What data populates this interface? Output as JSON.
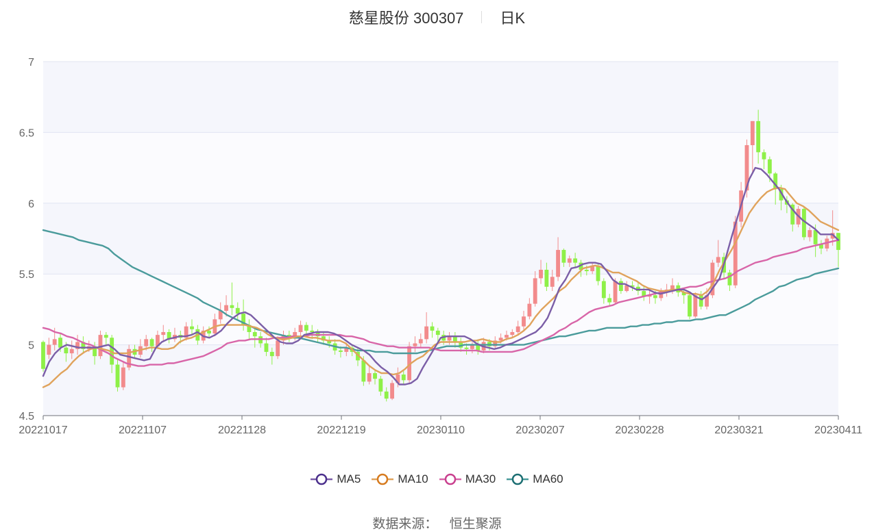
{
  "title": {
    "main": "慈星股份 300307",
    "sub": "日K"
  },
  "source": {
    "label": "数据来源：",
    "value": "恒生聚源"
  },
  "colors": {
    "up": "#f28b8c",
    "down": "#8ef048",
    "MA5": "#7b5ea7",
    "MA10": "#e0a35c",
    "MA30": "#d865a8",
    "MA60": "#4a9b9b",
    "legend_ring_MA5": "#4b2f8c",
    "legend_ring_MA10": "#d67a1e",
    "legend_ring_MA30": "#c93f8e",
    "legend_ring_MA60": "#1b6e72"
  },
  "chart_data": {
    "type": "candlestick",
    "ylim": [
      4.5,
      7
    ],
    "yticks": [
      "4.5",
      "5",
      "5.5",
      "6",
      "6.5",
      "7"
    ],
    "xticks": [
      "20221017",
      "20221107",
      "20221128",
      "20221219",
      "20230110",
      "20230207",
      "20230228",
      "20230321",
      "20230411"
    ],
    "legend": [
      "MA5",
      "MA10",
      "MA30",
      "MA60"
    ],
    "legend_position": "bottom",
    "candles": [
      [
        5.02,
        4.83,
        5.03,
        4.81
      ],
      [
        4.93,
        5.0,
        5.05,
        4.9
      ],
      [
        5.0,
        5.04,
        5.12,
        4.96
      ],
      [
        5.05,
        4.98,
        5.08,
        4.95
      ],
      [
        4.98,
        4.94,
        5.02,
        4.88
      ],
      [
        4.94,
        4.97,
        5.03,
        4.9
      ],
      [
        4.97,
        5.02,
        5.07,
        4.93
      ],
      [
        5.02,
        4.97,
        5.06,
        4.94
      ],
      [
        4.97,
        4.99,
        5.03,
        4.95
      ],
      [
        4.99,
        4.92,
        5.02,
        4.86
      ],
      [
        4.92,
        5.07,
        5.1,
        4.9
      ],
      [
        5.07,
        5.05,
        5.09,
        5.0
      ],
      [
        5.05,
        4.86,
        5.07,
        4.8
      ],
      [
        4.86,
        4.7,
        4.9,
        4.67
      ],
      [
        4.7,
        4.84,
        4.88,
        4.68
      ],
      [
        4.84,
        4.97,
        5.0,
        4.82
      ],
      [
        4.97,
        4.93,
        5.0,
        4.9
      ],
      [
        4.93,
        4.99,
        5.04,
        4.91
      ],
      [
        4.99,
        5.04,
        5.07,
        4.96
      ],
      [
        5.04,
        4.99,
        5.05,
        4.95
      ],
      [
        4.99,
        5.07,
        5.1,
        4.97
      ],
      [
        5.07,
        5.09,
        5.14,
        5.03
      ],
      [
        5.09,
        5.04,
        5.11,
        5.01
      ],
      [
        5.04,
        5.07,
        5.12,
        5.02
      ],
      [
        5.07,
        5.05,
        5.1,
        5.01
      ],
      [
        5.05,
        5.13,
        5.16,
        5.03
      ],
      [
        5.13,
        5.11,
        5.18,
        5.07
      ],
      [
        5.11,
        5.03,
        5.14,
        5.0
      ],
      [
        5.03,
        5.1,
        5.13,
        5.01
      ],
      [
        5.1,
        5.08,
        5.13,
        5.05
      ],
      [
        5.08,
        5.18,
        5.22,
        5.06
      ],
      [
        5.18,
        5.24,
        5.3,
        5.15
      ],
      [
        5.24,
        5.28,
        5.35,
        5.2
      ],
      [
        5.28,
        5.26,
        5.44,
        5.21
      ],
      [
        5.26,
        5.22,
        5.3,
        5.17
      ],
      [
        5.22,
        5.14,
        5.32,
        5.1
      ],
      [
        5.14,
        5.09,
        5.18,
        5.04
      ],
      [
        5.09,
        5.06,
        5.13,
        4.98
      ],
      [
        5.06,
        5.01,
        5.09,
        4.98
      ],
      [
        5.01,
        4.95,
        5.05,
        4.92
      ],
      [
        4.95,
        4.92,
        4.98,
        4.86
      ],
      [
        4.92,
        5.03,
        5.06,
        4.9
      ],
      [
        5.03,
        5.07,
        5.1,
        5.0
      ],
      [
        5.07,
        5.05,
        5.1,
        5.02
      ],
      [
        5.05,
        5.09,
        5.12,
        5.03
      ],
      [
        5.09,
        5.14,
        5.17,
        5.06
      ],
      [
        5.14,
        5.1,
        5.16,
        5.07
      ],
      [
        5.1,
        5.09,
        5.14,
        5.04
      ],
      [
        5.09,
        5.06,
        5.11,
        5.02
      ],
      [
        5.06,
        5.03,
        5.09,
        5.0
      ],
      [
        5.03,
        5.01,
        5.06,
        4.98
      ],
      [
        5.01,
        4.96,
        5.04,
        4.93
      ],
      [
        4.96,
        4.95,
        4.99,
        4.91
      ],
      [
        4.95,
        4.98,
        5.01,
        4.92
      ],
      [
        4.98,
        4.95,
        5.0,
        4.92
      ],
      [
        4.95,
        4.89,
        4.98,
        4.85
      ],
      [
        4.89,
        4.74,
        4.92,
        4.71
      ],
      [
        4.74,
        4.8,
        4.85,
        4.72
      ],
      [
        4.8,
        4.76,
        4.82,
        4.72
      ],
      [
        4.76,
        4.67,
        4.78,
        4.64
      ],
      [
        4.67,
        4.62,
        4.7,
        4.6
      ],
      [
        4.62,
        4.73,
        4.75,
        4.61
      ],
      [
        4.73,
        4.79,
        4.84,
        4.7
      ],
      [
        4.79,
        4.75,
        4.82,
        4.72
      ],
      [
        4.75,
        4.99,
        5.02,
        4.72
      ],
      [
        4.99,
        5.01,
        5.06,
        4.95
      ],
      [
        5.01,
        5.04,
        5.08,
        4.98
      ],
      [
        5.04,
        5.13,
        5.23,
        5.01
      ],
      [
        5.13,
        5.1,
        5.16,
        5.05
      ],
      [
        5.1,
        5.07,
        5.12,
        5.02
      ],
      [
        5.07,
        5.03,
        5.1,
        5.0
      ],
      [
        5.03,
        5.06,
        5.09,
        5.0
      ],
      [
        5.06,
        5.02,
        5.09,
        4.98
      ],
      [
        5.02,
        4.98,
        5.05,
        4.95
      ],
      [
        4.98,
        4.97,
        5.01,
        4.93
      ],
      [
        4.97,
        5.0,
        5.02,
        4.94
      ],
      [
        5.0,
        4.96,
        5.03,
        4.93
      ],
      [
        4.96,
        5.02,
        5.05,
        4.94
      ],
      [
        5.02,
        4.99,
        5.04,
        4.96
      ],
      [
        4.99,
        5.03,
        5.06,
        4.97
      ],
      [
        5.03,
        5.05,
        5.08,
        5.01
      ],
      [
        5.05,
        5.07,
        5.1,
        5.03
      ],
      [
        5.07,
        5.09,
        5.11,
        5.05
      ],
      [
        5.09,
        5.13,
        5.17,
        5.07
      ],
      [
        5.13,
        5.2,
        5.24,
        5.1
      ],
      [
        5.2,
        5.29,
        5.33,
        5.18
      ],
      [
        5.29,
        5.47,
        5.52,
        5.27
      ],
      [
        5.47,
        5.53,
        5.6,
        5.43
      ],
      [
        5.53,
        5.41,
        5.58,
        5.38
      ],
      [
        5.41,
        5.48,
        5.53,
        5.38
      ],
      [
        5.48,
        5.67,
        5.76,
        5.45
      ],
      [
        5.67,
        5.58,
        5.68,
        5.55
      ],
      [
        5.58,
        5.61,
        5.63,
        5.55
      ],
      [
        5.61,
        5.58,
        5.65,
        5.54
      ],
      [
        5.58,
        5.53,
        5.6,
        5.48
      ],
      [
        5.53,
        5.52,
        5.56,
        5.49
      ],
      [
        5.52,
        5.56,
        5.58,
        5.5
      ],
      [
        5.56,
        5.45,
        5.57,
        5.42
      ],
      [
        5.45,
        5.33,
        5.47,
        5.29
      ],
      [
        5.33,
        5.3,
        5.36,
        5.27
      ],
      [
        5.3,
        5.45,
        5.47,
        5.29
      ],
      [
        5.45,
        5.38,
        5.47,
        5.36
      ],
      [
        5.38,
        5.42,
        5.45,
        5.37
      ],
      [
        5.42,
        5.41,
        5.45,
        5.38
      ],
      [
        5.41,
        5.38,
        5.44,
        5.35
      ],
      [
        5.38,
        5.34,
        5.42,
        5.31
      ],
      [
        5.34,
        5.35,
        5.4,
        5.29
      ],
      [
        5.35,
        5.33,
        5.38,
        5.29
      ],
      [
        5.33,
        5.37,
        5.4,
        5.31
      ],
      [
        5.37,
        5.39,
        5.43,
        5.34
      ],
      [
        5.39,
        5.42,
        5.47,
        5.36
      ],
      [
        5.42,
        5.37,
        5.44,
        5.34
      ],
      [
        5.37,
        5.35,
        5.4,
        5.29
      ],
      [
        5.35,
        5.2,
        5.37,
        5.18
      ],
      [
        5.2,
        5.35,
        5.37,
        5.19
      ],
      [
        5.35,
        5.27,
        5.38,
        5.25
      ],
      [
        5.27,
        5.35,
        5.4,
        5.25
      ],
      [
        5.35,
        5.58,
        5.6,
        5.33
      ],
      [
        5.58,
        5.62,
        5.74,
        5.55
      ],
      [
        5.62,
        5.51,
        5.65,
        5.46
      ],
      [
        5.51,
        5.42,
        5.53,
        5.38
      ],
      [
        5.42,
        5.87,
        5.91,
        5.4
      ],
      [
        5.87,
        6.09,
        6.15,
        5.83
      ],
      [
        6.09,
        6.41,
        6.45,
        6.04
      ],
      [
        6.41,
        6.58,
        6.58,
        6.22
      ],
      [
        6.58,
        6.36,
        6.66,
        6.28
      ],
      [
        6.36,
        6.31,
        6.38,
        6.24
      ],
      [
        6.31,
        6.21,
        6.33,
        6.15
      ],
      [
        6.21,
        6.1,
        6.22,
        5.99
      ],
      [
        6.1,
        6.02,
        6.13,
        5.95
      ],
      [
        6.02,
        5.99,
        6.05,
        5.93
      ],
      [
        5.99,
        5.85,
        6.0,
        5.8
      ],
      [
        5.85,
        5.96,
        5.98,
        5.83
      ],
      [
        5.96,
        5.76,
        5.98,
        5.74
      ],
      [
        5.76,
        5.81,
        5.83,
        5.73
      ],
      [
        5.81,
        5.71,
        5.85,
        5.62
      ],
      [
        5.71,
        5.68,
        5.74,
        5.64
      ],
      [
        5.68,
        5.75,
        5.77,
        5.66
      ],
      [
        5.75,
        5.79,
        5.95,
        5.7
      ],
      [
        5.79,
        5.67,
        5.79,
        5.55
      ]
    ],
    "MA5": [
      4.78,
      4.88,
      4.94,
      4.98,
      5.0,
      4.99,
      4.98,
      4.98,
      4.98,
      4.98,
      4.99,
      5.0,
      4.97,
      4.93,
      4.92,
      4.91,
      4.9,
      4.89,
      4.9,
      4.98,
      5.02,
      5.04,
      5.05,
      5.06,
      5.06,
      5.07,
      5.09,
      5.06,
      5.05,
      5.07,
      5.1,
      5.15,
      5.19,
      5.22,
      5.23,
      5.21,
      5.17,
      5.13,
      5.09,
      5.05,
      5.02,
      5.01,
      5.01,
      5.03,
      5.07,
      5.08,
      5.09,
      5.09,
      5.09,
      5.08,
      5.06,
      5.03,
      5.0,
      4.98,
      4.96,
      4.93,
      4.88,
      4.84,
      4.81,
      4.77,
      4.72,
      4.72,
      4.73,
      4.76,
      4.84,
      4.91,
      4.98,
      5.05,
      5.06,
      5.06,
      5.06,
      5.06,
      5.04,
      5.01,
      4.99,
      4.98,
      4.97,
      4.98,
      5.0,
      5.01,
      5.03,
      5.05,
      5.07,
      5.09,
      5.13,
      5.19,
      5.29,
      5.4,
      5.46,
      5.54,
      5.55,
      5.57,
      5.58,
      5.58,
      5.57,
      5.52,
      5.46,
      5.43,
      5.43,
      5.41,
      5.39,
      5.39,
      5.39,
      5.37,
      5.36,
      5.37,
      5.38,
      5.39,
      5.39,
      5.37,
      5.34,
      5.32,
      5.35,
      5.41,
      5.47,
      5.61,
      5.76,
      5.9,
      6.04,
      6.17,
      6.25,
      6.24,
      6.2,
      6.15,
      6.1,
      6.03,
      5.97,
      5.92,
      5.88,
      5.85,
      5.82,
      5.78,
      5.78,
      5.78,
      5.74
    ],
    "MA10": [
      4.7,
      4.72,
      4.76,
      4.8,
      4.83,
      4.88,
      4.92,
      4.95,
      4.97,
      4.98,
      4.97,
      4.96,
      4.94,
      4.94,
      4.94,
      4.95,
      4.96,
      4.97,
      4.98,
      4.98,
      4.97,
      4.97,
      4.98,
      5.02,
      5.04,
      5.05,
      5.07,
      5.09,
      5.11,
      5.13,
      5.14,
      5.14,
      5.14,
      5.14,
      5.14,
      5.13,
      5.12,
      5.1,
      5.07,
      5.05,
      5.04,
      5.04,
      5.05,
      5.06,
      5.06,
      5.05,
      5.05,
      5.04,
      5.03,
      5.03,
      5.03,
      5.01,
      4.97,
      4.93,
      4.89,
      4.85,
      4.82,
      4.8,
      4.8,
      4.79,
      4.8,
      4.83,
      4.87,
      4.9,
      4.92,
      4.96,
      5.0,
      5.02,
      5.02,
      5.02,
      5.02,
      5.02,
      5.03,
      5.03,
      5.04,
      5.03,
      5.02,
      5.02,
      5.04,
      5.05,
      5.07,
      5.1,
      5.14,
      5.2,
      5.25,
      5.29,
      5.33,
      5.38,
      5.41,
      5.46,
      5.5,
      5.54,
      5.55,
      5.56,
      5.55,
      5.53,
      5.51,
      5.51,
      5.49,
      5.47,
      5.45,
      5.42,
      5.4,
      5.39,
      5.38,
      5.38,
      5.39,
      5.39,
      5.37,
      5.36,
      5.36,
      5.35,
      5.38,
      5.44,
      5.53,
      5.6,
      5.67,
      5.75,
      5.84,
      5.93,
      5.99,
      6.04,
      6.08,
      6.1,
      6.11,
      6.1,
      6.05,
      6.0,
      5.98,
      5.95,
      5.91,
      5.87,
      5.85,
      5.83,
      5.81
    ],
    "MA30": [
      5.12,
      5.11,
      5.09,
      5.08,
      5.06,
      5.05,
      5.03,
      5.01,
      5.0,
      4.98,
      4.96,
      4.94,
      4.91,
      4.89,
      4.87,
      4.86,
      4.85,
      4.85,
      4.86,
      4.86,
      4.86,
      4.87,
      4.87,
      4.88,
      4.89,
      4.9,
      4.91,
      4.92,
      4.94,
      4.96,
      4.98,
      5.01,
      5.02,
      5.03,
      5.03,
      5.04,
      5.04,
      5.04,
      5.04,
      5.05,
      5.05,
      5.05,
      5.06,
      5.06,
      5.06,
      5.07,
      5.07,
      5.07,
      5.07,
      5.07,
      5.07,
      5.06,
      5.06,
      5.05,
      5.04,
      5.02,
      5.01,
      5.0,
      4.99,
      4.99,
      4.98,
      4.98,
      4.98,
      4.98,
      4.98,
      4.98,
      4.97,
      4.96,
      4.96,
      4.96,
      4.96,
      4.96,
      4.96,
      4.96,
      4.95,
      4.95,
      4.95,
      4.95,
      4.95,
      4.95,
      4.96,
      4.97,
      4.99,
      5.01,
      5.03,
      5.05,
      5.07,
      5.1,
      5.12,
      5.15,
      5.17,
      5.2,
      5.23,
      5.25,
      5.26,
      5.27,
      5.28,
      5.3,
      5.31,
      5.32,
      5.33,
      5.34,
      5.35,
      5.36,
      5.37,
      5.38,
      5.38,
      5.39,
      5.4,
      5.41,
      5.41,
      5.42,
      5.44,
      5.45,
      5.46,
      5.47,
      5.49,
      5.52,
      5.54,
      5.56,
      5.58,
      5.59,
      5.6,
      5.62,
      5.63,
      5.64,
      5.65,
      5.66,
      5.68,
      5.69,
      5.7,
      5.71,
      5.72,
      5.73,
      5.74
    ],
    "MA60": [
      5.81,
      5.8,
      5.79,
      5.78,
      5.77,
      5.76,
      5.74,
      5.73,
      5.72,
      5.71,
      5.7,
      5.68,
      5.64,
      5.61,
      5.58,
      5.55,
      5.53,
      5.51,
      5.49,
      5.47,
      5.45,
      5.43,
      5.41,
      5.39,
      5.37,
      5.35,
      5.33,
      5.3,
      5.28,
      5.26,
      5.24,
      5.21,
      5.19,
      5.17,
      5.15,
      5.13,
      5.11,
      5.1,
      5.09,
      5.08,
      5.07,
      5.06,
      5.05,
      5.05,
      5.04,
      5.03,
      5.02,
      5.01,
      5.0,
      4.99,
      4.98,
      4.98,
      4.97,
      4.96,
      4.96,
      4.96,
      4.95,
      4.95,
      4.95,
      4.94,
      4.94,
      4.94,
      4.94,
      4.94,
      4.95,
      4.96,
      4.97,
      4.98,
      4.99,
      4.99,
      4.99,
      5.0,
      5.0,
      5.0,
      5.0,
      5.0,
      5.0,
      5.0,
      5.0,
      5.0,
      5.0,
      5.0,
      5.01,
      5.02,
      5.03,
      5.04,
      5.05,
      5.06,
      5.06,
      5.07,
      5.08,
      5.09,
      5.1,
      5.1,
      5.11,
      5.12,
      5.12,
      5.12,
      5.12,
      5.13,
      5.13,
      5.14,
      5.14,
      5.15,
      5.15,
      5.16,
      5.16,
      5.17,
      5.17,
      5.17,
      5.18,
      5.18,
      5.19,
      5.2,
      5.21,
      5.21,
      5.23,
      5.25,
      5.27,
      5.29,
      5.32,
      5.34,
      5.36,
      5.38,
      5.41,
      5.42,
      5.44,
      5.46,
      5.47,
      5.48,
      5.5,
      5.51,
      5.52,
      5.53,
      5.54
    ]
  }
}
